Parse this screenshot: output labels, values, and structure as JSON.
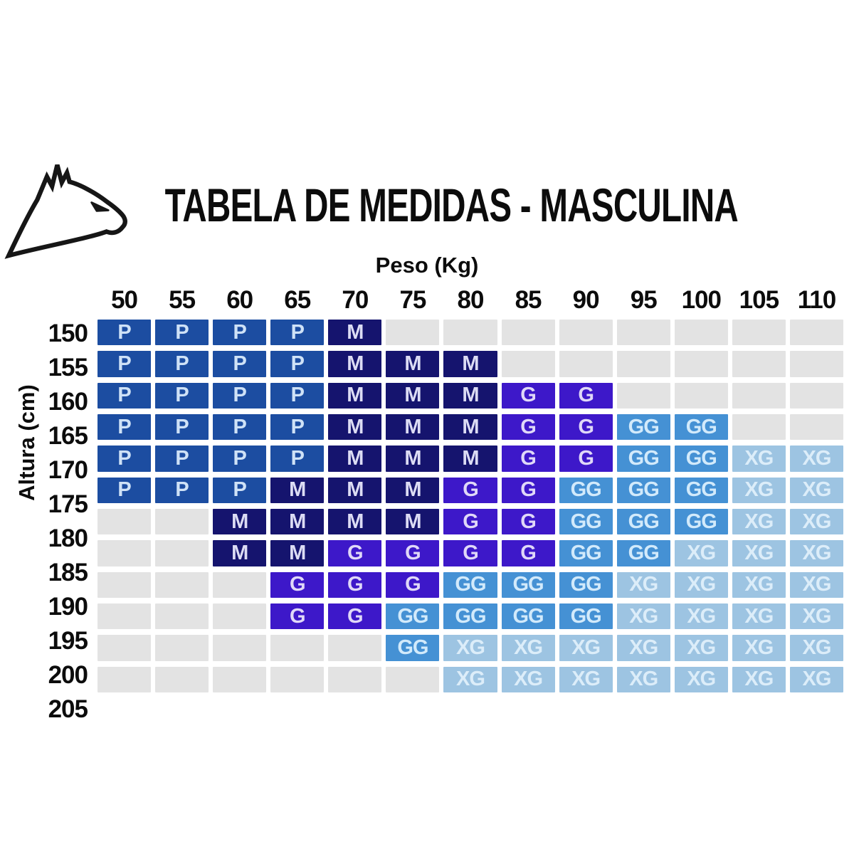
{
  "title": "TABELA DE MEDIDAS - MASCULINA",
  "logo": {
    "icon": "eagle-head-logo",
    "color": "#161616"
  },
  "x_axis": {
    "label": "Peso (Kg)",
    "values": [
      "50",
      "55",
      "60",
      "65",
      "70",
      "75",
      "80",
      "85",
      "90",
      "95",
      "100",
      "105",
      "110"
    ]
  },
  "y_axis": {
    "label": "Altura (cm)",
    "values": [
      "150",
      "155",
      "160",
      "165",
      "170",
      "175",
      "180",
      "185",
      "190",
      "195",
      "200",
      "205"
    ]
  },
  "sizes": {
    "P": {
      "label": "P",
      "color": "#1c4da1",
      "text_color": "#cfe2f7"
    },
    "M": {
      "label": "M",
      "color": "#15146e",
      "text_color": "#dcdcf4"
    },
    "G": {
      "label": "G",
      "color": "#3d18c9",
      "text_color": "#e0d8f8"
    },
    "GG": {
      "label": "GG",
      "color": "#4591d4",
      "text_color": "#d2eafb"
    },
    "XG": {
      "label": "XG",
      "color": "#9dc4e2",
      "text_color": "#dcedf9"
    },
    "empty": {
      "label": "",
      "color": "#e3e3e3",
      "text_color": "#e3e3e3"
    }
  },
  "grid": [
    [
      "P",
      "P",
      "P",
      "P",
      "M",
      "",
      "",
      "",
      "",
      "",
      "",
      "",
      ""
    ],
    [
      "P",
      "P",
      "P",
      "P",
      "M",
      "M",
      "M",
      "",
      "",
      "",
      "",
      "",
      ""
    ],
    [
      "P",
      "P",
      "P",
      "P",
      "M",
      "M",
      "M",
      "G",
      "G",
      "",
      "",
      "",
      ""
    ],
    [
      "P",
      "P",
      "P",
      "P",
      "M",
      "M",
      "M",
      "G",
      "G",
      "GG",
      "GG",
      "",
      ""
    ],
    [
      "P",
      "P",
      "P",
      "P",
      "M",
      "M",
      "M",
      "G",
      "G",
      "GG",
      "GG",
      "XG",
      "XG"
    ],
    [
      "P",
      "P",
      "P",
      "M",
      "M",
      "M",
      "G",
      "G",
      "GG",
      "GG",
      "GG",
      "XG",
      "XG"
    ],
    [
      "",
      "",
      "M",
      "M",
      "M",
      "M",
      "G",
      "G",
      "GG",
      "GG",
      "GG",
      "XG",
      "XG"
    ],
    [
      "",
      "",
      "M",
      "M",
      "G",
      "G",
      "G",
      "G",
      "GG",
      "GG",
      "XG",
      "XG",
      "XG"
    ],
    [
      "",
      "",
      "",
      "G",
      "G",
      "G",
      "GG",
      "GG",
      "GG",
      "XG",
      "XG",
      "XG",
      "XG"
    ],
    [
      "",
      "",
      "",
      "G",
      "G",
      "GG",
      "GG",
      "GG",
      "GG",
      "XG",
      "XG",
      "XG",
      "XG"
    ],
    [
      "",
      "",
      "",
      "",
      "",
      "GG",
      "XG",
      "XG",
      "XG",
      "XG",
      "XG",
      "XG",
      "XG"
    ],
    [
      "",
      "",
      "",
      "",
      "",
      "",
      "XG",
      "XG",
      "XG",
      "XG",
      "XG",
      "XG",
      "XG"
    ]
  ],
  "chart_data": {
    "type": "heatmap",
    "title": "TABELA DE MEDIDAS - MASCULINA",
    "xlabel": "Peso (Kg)",
    "ylabel": "Altura (cm)",
    "x_categories": [
      50,
      55,
      60,
      65,
      70,
      75,
      80,
      85,
      90,
      95,
      100,
      105,
      110
    ],
    "y_categories": [
      150,
      155,
      160,
      165,
      170,
      175,
      180,
      185,
      190,
      195,
      200,
      205
    ],
    "cell_values": [
      [
        "P",
        "P",
        "P",
        "P",
        "M",
        null,
        null,
        null,
        null,
        null,
        null,
        null,
        null
      ],
      [
        "P",
        "P",
        "P",
        "P",
        "M",
        "M",
        "M",
        null,
        null,
        null,
        null,
        null,
        null
      ],
      [
        "P",
        "P",
        "P",
        "P",
        "M",
        "M",
        "M",
        "G",
        "G",
        null,
        null,
        null,
        null
      ],
      [
        "P",
        "P",
        "P",
        "P",
        "M",
        "M",
        "M",
        "G",
        "G",
        "GG",
        "GG",
        null,
        null
      ],
      [
        "P",
        "P",
        "P",
        "P",
        "M",
        "M",
        "M",
        "G",
        "G",
        "GG",
        "GG",
        "XG",
        "XG"
      ],
      [
        "P",
        "P",
        "P",
        "M",
        "M",
        "M",
        "G",
        "G",
        "GG",
        "GG",
        "GG",
        "XG",
        "XG"
      ],
      [
        null,
        null,
        "M",
        "M",
        "M",
        "M",
        "G",
        "G",
        "GG",
        "GG",
        "GG",
        "XG",
        "XG"
      ],
      [
        null,
        null,
        "M",
        "M",
        "G",
        "G",
        "G",
        "G",
        "GG",
        "GG",
        "XG",
        "XG",
        "XG"
      ],
      [
        null,
        null,
        null,
        "G",
        "G",
        "G",
        "GG",
        "GG",
        "GG",
        "XG",
        "XG",
        "XG",
        "XG"
      ],
      [
        null,
        null,
        null,
        "G",
        "G",
        "GG",
        "GG",
        "GG",
        "GG",
        "XG",
        "XG",
        "XG",
        "XG"
      ],
      [
        null,
        null,
        null,
        null,
        null,
        "GG",
        "XG",
        "XG",
        "XG",
        "XG",
        "XG",
        "XG",
        "XG"
      ],
      [
        null,
        null,
        null,
        null,
        null,
        null,
        "XG",
        "XG",
        "XG",
        "XG",
        "XG",
        "XG",
        "XG"
      ]
    ],
    "legend": {
      "P": "#1c4da1",
      "M": "#15146e",
      "G": "#3d18c9",
      "GG": "#4591d4",
      "XG": "#9dc4e2",
      "no_size": "#e3e3e3"
    },
    "grid_on": false,
    "legend_position": "none"
  }
}
